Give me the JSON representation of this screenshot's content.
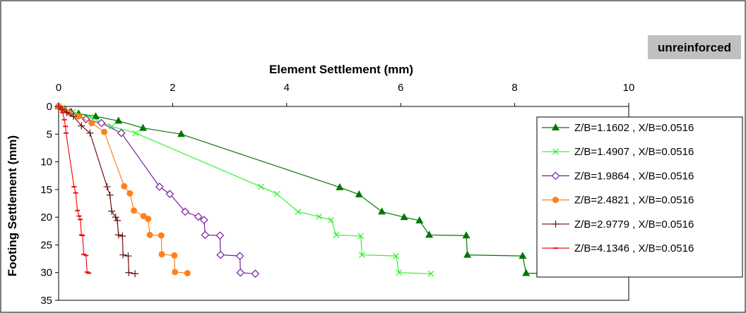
{
  "chart_data": {
    "type": "line",
    "title": "",
    "badge": "unreinforced",
    "xlabel": "Element Settlement (mm)",
    "ylabel": "Footing Settlement (mm)",
    "xlim": [
      0,
      10
    ],
    "ylim": [
      0,
      35
    ],
    "x_ticks": [
      0,
      2,
      4,
      6,
      8,
      10
    ],
    "y_ticks": [
      0,
      5,
      10,
      15,
      20,
      25,
      30,
      35
    ],
    "x_axis_position": "top",
    "y_axis_inverted": true,
    "grid": false,
    "legend_position": "right",
    "series": [
      {
        "name": "Z/B=1.1602 , X/B=0.0516",
        "color": "#007700",
        "marker": "triangle",
        "points": [
          [
            0,
            0
          ],
          [
            0.1,
            0.5
          ],
          [
            0.22,
            1.0
          ],
          [
            0.35,
            1.3
          ],
          [
            0.65,
            1.8
          ],
          [
            1.05,
            2.6
          ],
          [
            1.48,
            3.9
          ],
          [
            2.15,
            5.0
          ],
          [
            4.93,
            14.6
          ],
          [
            5.27,
            15.9
          ],
          [
            5.67,
            19.0
          ],
          [
            6.06,
            20.0
          ],
          [
            6.33,
            20.6
          ],
          [
            6.5,
            23.2
          ],
          [
            7.15,
            23.3
          ],
          [
            7.17,
            26.8
          ],
          [
            8.14,
            27.0
          ],
          [
            8.2,
            30.1
          ],
          [
            9.05,
            30.2
          ]
        ]
      },
      {
        "name": "Z/B=1.4907 , X/B=0.0516",
        "color": "#33ee33",
        "marker": "x",
        "points": [
          [
            0,
            0
          ],
          [
            0.1,
            0.6
          ],
          [
            0.25,
            1.0
          ],
          [
            0.55,
            1.9
          ],
          [
            0.93,
            3.6
          ],
          [
            1.35,
            4.8
          ],
          [
            3.55,
            14.5
          ],
          [
            3.83,
            15.8
          ],
          [
            4.2,
            19.0
          ],
          [
            4.57,
            19.9
          ],
          [
            4.78,
            20.5
          ],
          [
            4.87,
            23.2
          ],
          [
            5.3,
            23.4
          ],
          [
            5.32,
            26.8
          ],
          [
            5.92,
            27.0
          ],
          [
            5.97,
            30.0
          ],
          [
            6.53,
            30.2
          ]
        ]
      },
      {
        "name": "Z/B=1.9864 , X/B=0.0516",
        "color": "#7a1ea0",
        "marker": "diamond",
        "points": [
          [
            0,
            0
          ],
          [
            0.08,
            0.6
          ],
          [
            0.2,
            1.1
          ],
          [
            0.48,
            2.3
          ],
          [
            0.75,
            3.0
          ],
          [
            1.1,
            4.8
          ],
          [
            1.77,
            14.5
          ],
          [
            1.95,
            15.8
          ],
          [
            2.22,
            19.0
          ],
          [
            2.45,
            19.9
          ],
          [
            2.55,
            20.5
          ],
          [
            2.57,
            23.2
          ],
          [
            2.83,
            23.3
          ],
          [
            2.84,
            26.8
          ],
          [
            3.18,
            27.0
          ],
          [
            3.19,
            30.0
          ],
          [
            3.45,
            30.2
          ]
        ]
      },
      {
        "name": "Z/B=2.4821 , X/B=0.0516",
        "color": "#ff7f1e",
        "marker": "circle",
        "points": [
          [
            0,
            0
          ],
          [
            0.07,
            0.5
          ],
          [
            0.18,
            1.1
          ],
          [
            0.35,
            1.8
          ],
          [
            0.58,
            3.0
          ],
          [
            0.8,
            4.6
          ],
          [
            1.15,
            14.4
          ],
          [
            1.25,
            15.7
          ],
          [
            1.32,
            18.8
          ],
          [
            1.49,
            19.8
          ],
          [
            1.57,
            20.3
          ],
          [
            1.6,
            23.2
          ],
          [
            1.8,
            23.3
          ],
          [
            1.81,
            26.7
          ],
          [
            2.03,
            26.9
          ],
          [
            2.04,
            29.9
          ],
          [
            2.26,
            30.1
          ]
        ]
      },
      {
        "name": "Z/B=2.9779 , X/B=0.0516",
        "color": "#6b0f12",
        "marker": "plus",
        "points": [
          [
            0,
            0
          ],
          [
            0.06,
            0.5
          ],
          [
            0.14,
            1.1
          ],
          [
            0.26,
            1.8
          ],
          [
            0.4,
            3.5
          ],
          [
            0.55,
            4.8
          ],
          [
            0.85,
            14.5
          ],
          [
            0.9,
            16.0
          ],
          [
            0.93,
            18.9
          ],
          [
            1.0,
            20.0
          ],
          [
            1.03,
            20.6
          ],
          [
            1.05,
            23.2
          ],
          [
            1.12,
            23.4
          ],
          [
            1.13,
            26.8
          ],
          [
            1.22,
            27.0
          ],
          [
            1.23,
            30.0
          ],
          [
            1.34,
            30.2
          ]
        ]
      },
      {
        "name": "Z/B=4.1346 , X/B=0.0516",
        "color": "#ee1111",
        "marker": "dash",
        "points": [
          [
            0,
            0
          ],
          [
            0.04,
            0.5
          ],
          [
            0.07,
            1.1
          ],
          [
            0.1,
            2.4
          ],
          [
            0.12,
            3.6
          ],
          [
            0.13,
            4.8
          ],
          [
            0.27,
            14.5
          ],
          [
            0.3,
            15.6
          ],
          [
            0.33,
            18.8
          ],
          [
            0.36,
            19.8
          ],
          [
            0.38,
            20.4
          ],
          [
            0.4,
            23.2
          ],
          [
            0.42,
            23.3
          ],
          [
            0.44,
            26.7
          ],
          [
            0.48,
            26.9
          ],
          [
            0.5,
            29.9
          ],
          [
            0.53,
            30.1
          ]
        ]
      }
    ]
  }
}
